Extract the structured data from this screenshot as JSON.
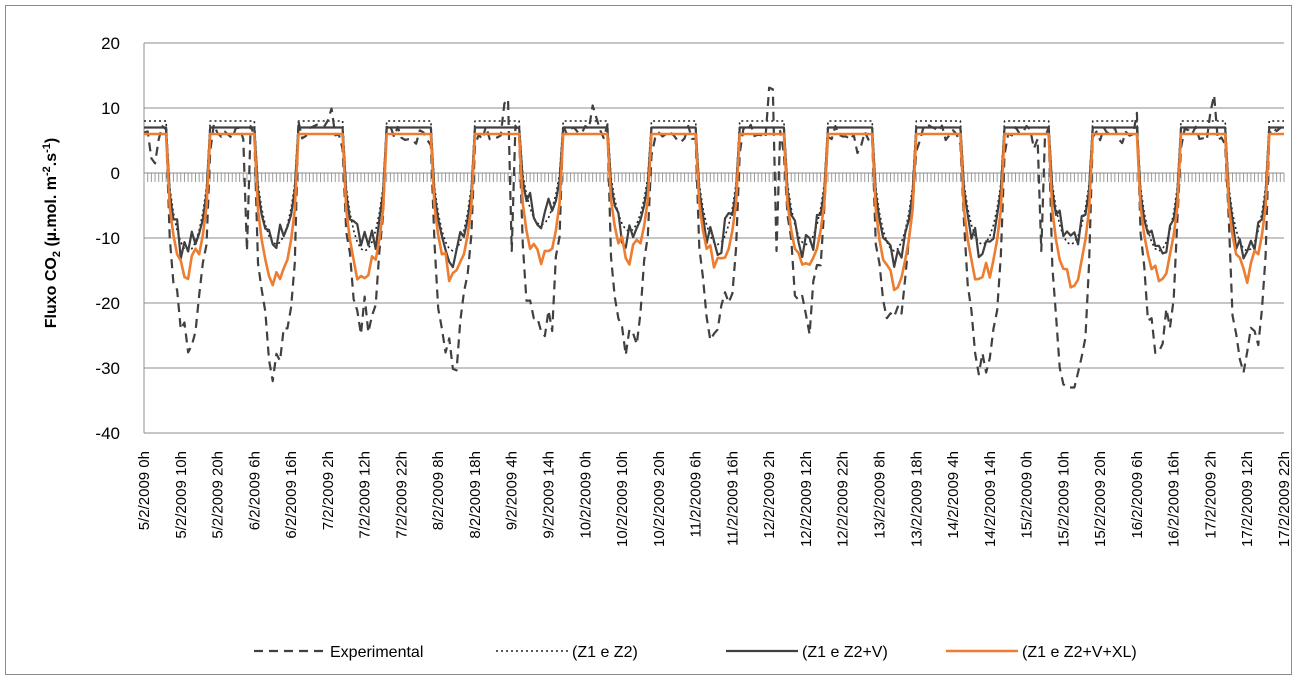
{
  "chart_data": {
    "type": "line",
    "title": "",
    "xlabel": "",
    "ylabel_main": "Fluxo CO",
    "ylabel_sub": "2",
    "ylabel_unit_a": " (µ.mol. m",
    "ylabel_sup1": "-2",
    "ylabel_unit_b": ".s",
    "ylabel_sup2": "-1",
    "ylabel_close": ")",
    "ylim": [
      -40,
      20
    ],
    "yticks": [
      20,
      10,
      0,
      -10,
      -20,
      -30,
      -40
    ],
    "grid": true,
    "legend_position": "bottom",
    "xlabels": [
      "5/2/2009 0h",
      "5/2/2009 10h",
      "5/2/2009 20h",
      "6/2/2009 6h",
      "6/2/2009 16h",
      "7/2/2009 2h",
      "7/2/2009 12h",
      "7/2/2009 22h",
      "8/2/2009 8h",
      "8/2/2009 18h",
      "9/2/2009 4h",
      "9/2/2009 14h",
      "10/2/2009 0h",
      "10/2/2009 10h",
      "10/2/2009 20h",
      "11/2/2009 6h",
      "11/2/2009 16h",
      "12/2/2009 2h",
      "12/2/2009 12h",
      "12/2/2009 22h",
      "13/2/2009 8h",
      "13/2/2009 18h",
      "14/2/2009 4h",
      "14/2/2009 14h",
      "15/2/2009 0h",
      "15/2/2009 10h",
      "15/2/2009 20h",
      "16/2/2009 6h",
      "16/2/2009 16h",
      "17/2/2009 2h",
      "17/2/2009 12h",
      "17/2/2009 22h"
    ],
    "series": [
      {
        "name": "Experimental",
        "color": "#404040",
        "style": "dashed"
      },
      {
        "name": "(Z1 e Z2)",
        "color": "#202020",
        "style": "dotted"
      },
      {
        "name": "(Z1 e Z2+V)",
        "color": "#404040",
        "style": "solid"
      },
      {
        "name": "(Z1 e Z2+V+XL)",
        "color": "#ed7d31",
        "style": "solid"
      }
    ],
    "day_night_pattern": {
      "days": [
        "5/2/2009",
        "6/2/2009",
        "7/2/2009",
        "8/2/2009",
        "9/2/2009",
        "10/2/2009",
        "11/2/2009",
        "12/2/2009",
        "13/2/2009",
        "14/2/2009",
        "15/2/2009",
        "16/2/2009",
        "17/2/2009"
      ],
      "night_level_Z1_Z2": 8,
      "night_level_Z1_Z2_V": 7,
      "night_level_Z1_Z2_V_XL": 6,
      "day_min_Z1_Z2_V": [
        -13,
        -12,
        -13,
        -13,
        -9,
        -10,
        -12,
        -12,
        -13,
        -12,
        -12,
        -13,
        -13
      ],
      "day_min_Z1_Z2_V_XL": [
        -16,
        -17,
        -17,
        -16,
        -15,
        -14,
        -15,
        -15,
        -17,
        -17,
        -17,
        -16,
        -16
      ],
      "day_min_Experimental": [
        -24,
        -29,
        -22,
        -27,
        -26,
        -26,
        -24,
        -22,
        -22,
        -28,
        -33,
        -27,
        -28
      ],
      "experimental_peaks": [
        3,
        8,
        10,
        7,
        12.5,
        11.5,
        7,
        15,
        6,
        6,
        6,
        7,
        12
      ]
    }
  }
}
